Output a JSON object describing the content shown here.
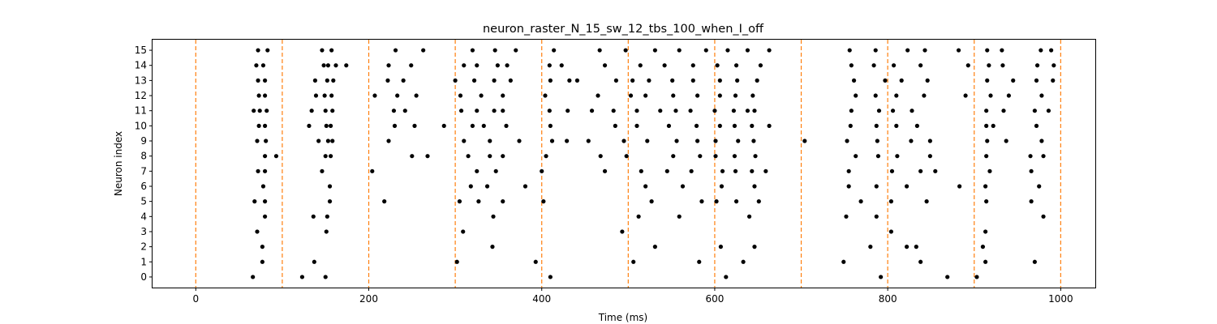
{
  "chart_data": {
    "type": "scatter",
    "title": "neuron_raster_N_15_sw_12_tbs_100_when_I_off",
    "xlabel": "Time (ms)",
    "ylabel": "Neuron index",
    "xlim": [
      -50,
      1040
    ],
    "ylim": [
      -0.7,
      15.7
    ],
    "xticks": [
      0,
      200,
      400,
      600,
      800,
      1000
    ],
    "xtick_labels": [
      "0",
      "200",
      "400",
      "600",
      "800",
      "1000"
    ],
    "yticks": [
      0,
      1,
      2,
      3,
      4,
      5,
      6,
      7,
      8,
      9,
      10,
      11,
      12,
      13,
      14,
      15
    ],
    "ytick_labels": [
      "0",
      "1",
      "2",
      "3",
      "4",
      "5",
      "6",
      "7",
      "8",
      "9",
      "10",
      "11",
      "12",
      "13",
      "14",
      "15"
    ],
    "grid": false,
    "marker_color": "#000000",
    "vline_color": "#ff7f0e",
    "vlines": [
      0,
      100,
      200,
      300,
      400,
      500,
      600,
      700,
      800,
      900,
      1000
    ],
    "spikes": [
      [
        66,
        0
      ],
      [
        123,
        0
      ],
      [
        150,
        0
      ],
      [
        410,
        0
      ],
      [
        613,
        0
      ],
      [
        792,
        0
      ],
      [
        869,
        0
      ],
      [
        903,
        0
      ],
      [
        77,
        1
      ],
      [
        137,
        1
      ],
      [
        302,
        1
      ],
      [
        393,
        1
      ],
      [
        506,
        1
      ],
      [
        582,
        1
      ],
      [
        633,
        1
      ],
      [
        749,
        1
      ],
      [
        838,
        1
      ],
      [
        913,
        1
      ],
      [
        970,
        1
      ],
      [
        77,
        2
      ],
      [
        343,
        2
      ],
      [
        531,
        2
      ],
      [
        607,
        2
      ],
      [
        646,
        2
      ],
      [
        780,
        2
      ],
      [
        822,
        2
      ],
      [
        833,
        2
      ],
      [
        910,
        2
      ],
      [
        71,
        3
      ],
      [
        151,
        3
      ],
      [
        309,
        3
      ],
      [
        493,
        3
      ],
      [
        804,
        3
      ],
      [
        913,
        3
      ],
      [
        80,
        4
      ],
      [
        136,
        4
      ],
      [
        152,
        4
      ],
      [
        344,
        4
      ],
      [
        512,
        4
      ],
      [
        559,
        4
      ],
      [
        640,
        4
      ],
      [
        752,
        4
      ],
      [
        787,
        4
      ],
      [
        980,
        4
      ],
      [
        68,
        5
      ],
      [
        80,
        5
      ],
      [
        155,
        5
      ],
      [
        218,
        5
      ],
      [
        305,
        5
      ],
      [
        327,
        5
      ],
      [
        355,
        5
      ],
      [
        402,
        5
      ],
      [
        527,
        5
      ],
      [
        585,
        5
      ],
      [
        602,
        5
      ],
      [
        625,
        5
      ],
      [
        651,
        5
      ],
      [
        769,
        5
      ],
      [
        804,
        5
      ],
      [
        845,
        5
      ],
      [
        914,
        5
      ],
      [
        966,
        5
      ],
      [
        78,
        6
      ],
      [
        155,
        6
      ],
      [
        318,
        6
      ],
      [
        337,
        6
      ],
      [
        381,
        6
      ],
      [
        520,
        6
      ],
      [
        563,
        6
      ],
      [
        608,
        6
      ],
      [
        646,
        6
      ],
      [
        755,
        6
      ],
      [
        787,
        6
      ],
      [
        822,
        6
      ],
      [
        883,
        6
      ],
      [
        913,
        6
      ],
      [
        975,
        6
      ],
      [
        72,
        7
      ],
      [
        80,
        7
      ],
      [
        146,
        7
      ],
      [
        204,
        7
      ],
      [
        325,
        7
      ],
      [
        347,
        7
      ],
      [
        400,
        7
      ],
      [
        473,
        7
      ],
      [
        515,
        7
      ],
      [
        545,
        7
      ],
      [
        573,
        7
      ],
      [
        609,
        7
      ],
      [
        624,
        7
      ],
      [
        643,
        7
      ],
      [
        659,
        7
      ],
      [
        755,
        7
      ],
      [
        805,
        7
      ],
      [
        838,
        7
      ],
      [
        855,
        7
      ],
      [
        918,
        7
      ],
      [
        966,
        7
      ],
      [
        80,
        8
      ],
      [
        93,
        8
      ],
      [
        150,
        8
      ],
      [
        156,
        8
      ],
      [
        250,
        8
      ],
      [
        268,
        8
      ],
      [
        315,
        8
      ],
      [
        340,
        8
      ],
      [
        355,
        8
      ],
      [
        405,
        8
      ],
      [
        468,
        8
      ],
      [
        498,
        8
      ],
      [
        552,
        8
      ],
      [
        583,
        8
      ],
      [
        601,
        8
      ],
      [
        623,
        8
      ],
      [
        647,
        8
      ],
      [
        763,
        8
      ],
      [
        789,
        8
      ],
      [
        811,
        8
      ],
      [
        849,
        8
      ],
      [
        914,
        8
      ],
      [
        965,
        8
      ],
      [
        980,
        8
      ],
      [
        71,
        9
      ],
      [
        81,
        9
      ],
      [
        142,
        9
      ],
      [
        153,
        9
      ],
      [
        158,
        9
      ],
      [
        223,
        9
      ],
      [
        310,
        9
      ],
      [
        340,
        9
      ],
      [
        374,
        9
      ],
      [
        412,
        9
      ],
      [
        429,
        9
      ],
      [
        454,
        9
      ],
      [
        495,
        9
      ],
      [
        522,
        9
      ],
      [
        556,
        9
      ],
      [
        580,
        9
      ],
      [
        601,
        9
      ],
      [
        627,
        9
      ],
      [
        645,
        9
      ],
      [
        704,
        9
      ],
      [
        753,
        9
      ],
      [
        788,
        9
      ],
      [
        827,
        9
      ],
      [
        849,
        9
      ],
      [
        915,
        9
      ],
      [
        937,
        9
      ],
      [
        978,
        9
      ],
      [
        73,
        10
      ],
      [
        80,
        10
      ],
      [
        131,
        10
      ],
      [
        151,
        10
      ],
      [
        156,
        10
      ],
      [
        230,
        10
      ],
      [
        253,
        10
      ],
      [
        287,
        10
      ],
      [
        320,
        10
      ],
      [
        333,
        10
      ],
      [
        359,
        10
      ],
      [
        410,
        10
      ],
      [
        485,
        10
      ],
      [
        510,
        10
      ],
      [
        547,
        10
      ],
      [
        579,
        10
      ],
      [
        606,
        10
      ],
      [
        623,
        10
      ],
      [
        643,
        10
      ],
      [
        663,
        10
      ],
      [
        757,
        10
      ],
      [
        787,
        10
      ],
      [
        810,
        10
      ],
      [
        834,
        10
      ],
      [
        914,
        10
      ],
      [
        922,
        10
      ],
      [
        972,
        10
      ],
      [
        67,
        11
      ],
      [
        74,
        11
      ],
      [
        82,
        11
      ],
      [
        134,
        11
      ],
      [
        150,
        11
      ],
      [
        158,
        11
      ],
      [
        229,
        11
      ],
      [
        242,
        11
      ],
      [
        307,
        11
      ],
      [
        325,
        11
      ],
      [
        345,
        11
      ],
      [
        355,
        11
      ],
      [
        409,
        11
      ],
      [
        430,
        11
      ],
      [
        458,
        11
      ],
      [
        483,
        11
      ],
      [
        510,
        11
      ],
      [
        537,
        11
      ],
      [
        555,
        11
      ],
      [
        572,
        11
      ],
      [
        600,
        11
      ],
      [
        622,
        11
      ],
      [
        638,
        11
      ],
      [
        646,
        11
      ],
      [
        758,
        11
      ],
      [
        790,
        11
      ],
      [
        806,
        11
      ],
      [
        828,
        11
      ],
      [
        914,
        11
      ],
      [
        934,
        11
      ],
      [
        970,
        11
      ],
      [
        986,
        11
      ],
      [
        73,
        12
      ],
      [
        80,
        12
      ],
      [
        139,
        12
      ],
      [
        149,
        12
      ],
      [
        157,
        12
      ],
      [
        207,
        12
      ],
      [
        233,
        12
      ],
      [
        255,
        12
      ],
      [
        306,
        12
      ],
      [
        330,
        12
      ],
      [
        355,
        12
      ],
      [
        404,
        12
      ],
      [
        465,
        12
      ],
      [
        503,
        12
      ],
      [
        520,
        12
      ],
      [
        552,
        12
      ],
      [
        580,
        12
      ],
      [
        606,
        12
      ],
      [
        624,
        12
      ],
      [
        644,
        12
      ],
      [
        763,
        12
      ],
      [
        786,
        12
      ],
      [
        810,
        12
      ],
      [
        842,
        12
      ],
      [
        890,
        12
      ],
      [
        919,
        12
      ],
      [
        940,
        12
      ],
      [
        978,
        12
      ],
      [
        72,
        13
      ],
      [
        80,
        13
      ],
      [
        138,
        13
      ],
      [
        152,
        13
      ],
      [
        159,
        13
      ],
      [
        222,
        13
      ],
      [
        240,
        13
      ],
      [
        300,
        13
      ],
      [
        322,
        13
      ],
      [
        345,
        13
      ],
      [
        364,
        13
      ],
      [
        410,
        13
      ],
      [
        432,
        13
      ],
      [
        441,
        13
      ],
      [
        486,
        13
      ],
      [
        505,
        13
      ],
      [
        524,
        13
      ],
      [
        551,
        13
      ],
      [
        575,
        13
      ],
      [
        606,
        13
      ],
      [
        626,
        13
      ],
      [
        649,
        13
      ],
      [
        761,
        13
      ],
      [
        797,
        13
      ],
      [
        816,
        13
      ],
      [
        846,
        13
      ],
      [
        915,
        13
      ],
      [
        945,
        13
      ],
      [
        972,
        13
      ],
      [
        991,
        13
      ],
      [
        70,
        14
      ],
      [
        78,
        14
      ],
      [
        148,
        14
      ],
      [
        153,
        14
      ],
      [
        162,
        14
      ],
      [
        174,
        14
      ],
      [
        223,
        14
      ],
      [
        249,
        14
      ],
      [
        310,
        14
      ],
      [
        325,
        14
      ],
      [
        349,
        14
      ],
      [
        360,
        14
      ],
      [
        409,
        14
      ],
      [
        423,
        14
      ],
      [
        473,
        14
      ],
      [
        514,
        14
      ],
      [
        542,
        14
      ],
      [
        575,
        14
      ],
      [
        603,
        14
      ],
      [
        625,
        14
      ],
      [
        653,
        14
      ],
      [
        758,
        14
      ],
      [
        784,
        14
      ],
      [
        807,
        14
      ],
      [
        838,
        14
      ],
      [
        893,
        14
      ],
      [
        917,
        14
      ],
      [
        933,
        14
      ],
      [
        973,
        14
      ],
      [
        992,
        14
      ],
      [
        72,
        15
      ],
      [
        83,
        15
      ],
      [
        146,
        15
      ],
      [
        157,
        15
      ],
      [
        231,
        15
      ],
      [
        263,
        15
      ],
      [
        320,
        15
      ],
      [
        346,
        15
      ],
      [
        370,
        15
      ],
      [
        414,
        15
      ],
      [
        467,
        15
      ],
      [
        497,
        15
      ],
      [
        531,
        15
      ],
      [
        559,
        15
      ],
      [
        590,
        15
      ],
      [
        615,
        15
      ],
      [
        638,
        15
      ],
      [
        663,
        15
      ],
      [
        756,
        15
      ],
      [
        786,
        15
      ],
      [
        823,
        15
      ],
      [
        843,
        15
      ],
      [
        882,
        15
      ],
      [
        915,
        15
      ],
      [
        932,
        15
      ],
      [
        977,
        15
      ],
      [
        989,
        15
      ]
    ]
  }
}
